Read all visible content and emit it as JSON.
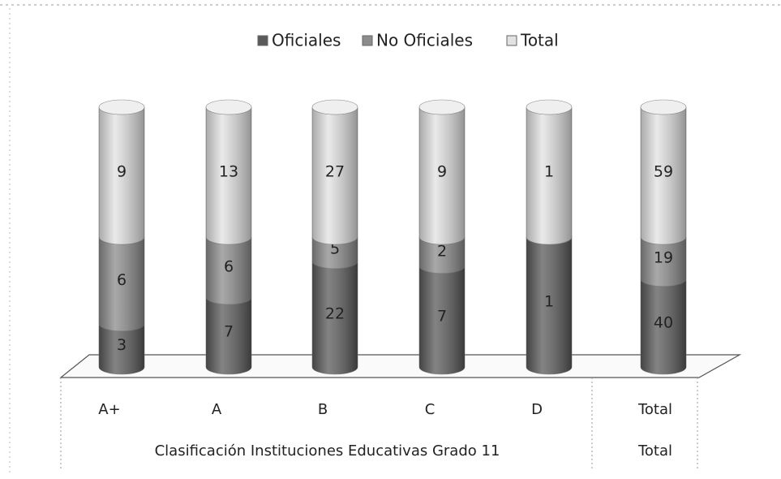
{
  "chart_data": {
    "type": "bar",
    "stacked": "percent",
    "categories": [
      "A+",
      "A",
      "B",
      "C",
      "D",
      "Total"
    ],
    "groups": [
      {
        "label": "Clasificación Instituciones Educativas  Grado 11",
        "size": 5
      },
      {
        "label": "Total",
        "size": 1
      }
    ],
    "series": [
      {
        "name": "Oficiales",
        "color": "#5a5a5a",
        "values": [
          3,
          7,
          22,
          7,
          1,
          40
        ]
      },
      {
        "name": "No Oficiales",
        "color": "#8c8c8c",
        "values": [
          6,
          6,
          5,
          2,
          0,
          19
        ]
      },
      {
        "name": "Total",
        "color": "#e2e2e2",
        "values": [
          9,
          13,
          27,
          9,
          1,
          59
        ]
      }
    ],
    "legend": "top"
  }
}
